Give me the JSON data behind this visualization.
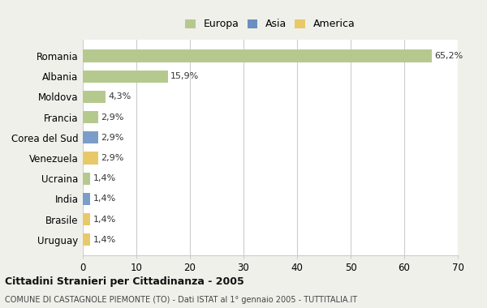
{
  "countries": [
    "Romania",
    "Albania",
    "Moldova",
    "Francia",
    "Corea del Sud",
    "Venezuela",
    "Ucraina",
    "India",
    "Brasile",
    "Uruguay"
  ],
  "values": [
    65.2,
    15.9,
    4.3,
    2.9,
    2.9,
    2.9,
    1.4,
    1.4,
    1.4,
    1.4
  ],
  "labels": [
    "65,2%",
    "15,9%",
    "4,3%",
    "2,9%",
    "2,9%",
    "2,9%",
    "1,4%",
    "1,4%",
    "1,4%",
    "1,4%"
  ],
  "continents": [
    "Europa",
    "Europa",
    "Europa",
    "Europa",
    "Asia",
    "America",
    "Europa",
    "Asia",
    "America",
    "America"
  ],
  "colors": {
    "Europa": "#b5c98e",
    "Asia": "#7b9dc9",
    "America": "#e8c96a"
  },
  "legend_colors": {
    "Europa": "#b5c98e",
    "Asia": "#6b8fc0",
    "America": "#e8c96a"
  },
  "background_color": "#f0f0eb",
  "bar_background": "#ffffff",
  "grid_color": "#cccccc",
  "title": "Cittadini Stranieri per Cittadinanza - 2005",
  "subtitle": "COMUNE DI CASTAGNOLE PIEMONTE (TO) - Dati ISTAT al 1° gennaio 2005 - TUTTITALIA.IT",
  "xlim": [
    0,
    70
  ],
  "xticks": [
    0,
    10,
    20,
    30,
    40,
    50,
    60,
    70
  ]
}
